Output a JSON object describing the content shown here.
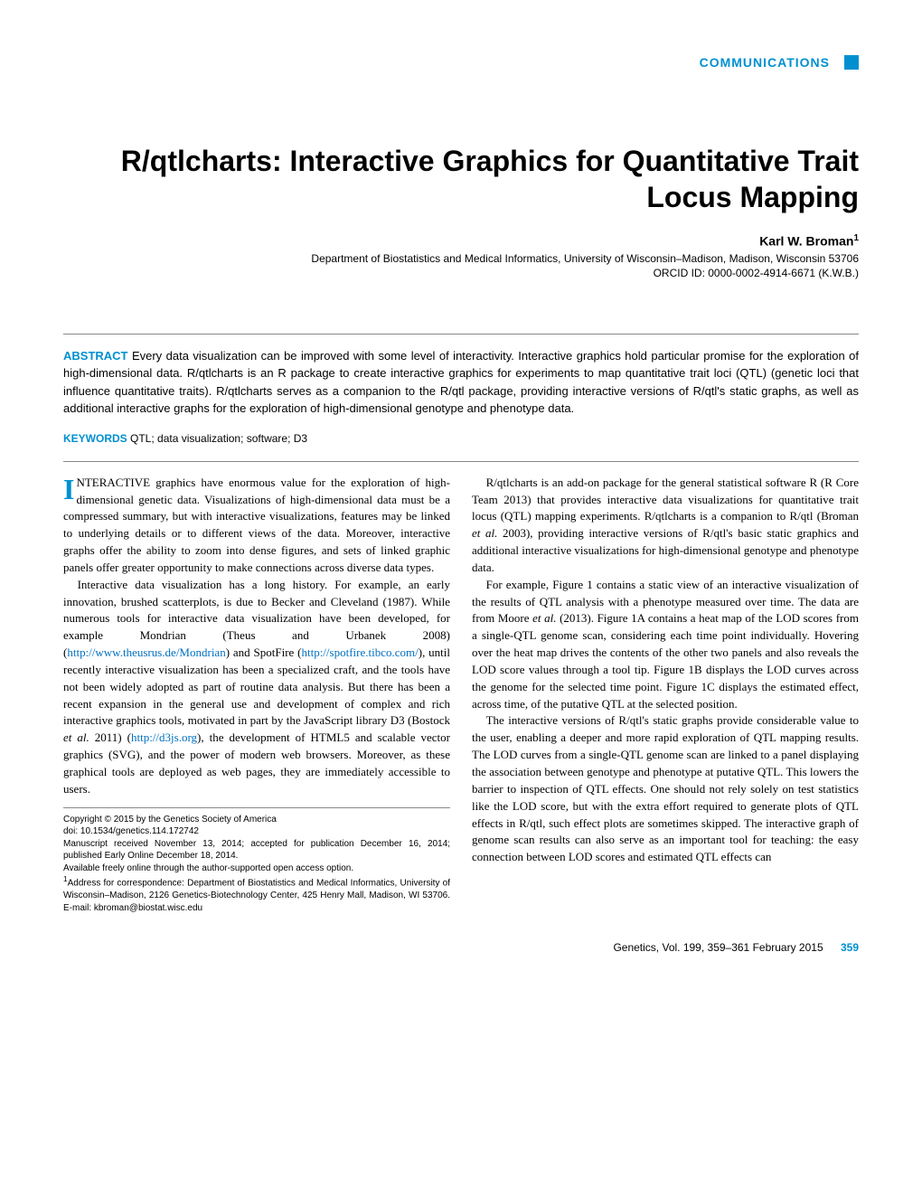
{
  "header": {
    "section_label": "COMMUNICATIONS"
  },
  "title": "R/qtlcharts: Interactive Graphics for Quantitative Trait Locus Mapping",
  "author": {
    "name": "Karl W. Broman",
    "sup": "1",
    "affiliation": "Department of Biostatistics and Medical Informatics, University of Wisconsin–Madison, Madison, Wisconsin 53706",
    "orcid": "ORCID ID: 0000-0002-4914-6671 (K.W.B.)"
  },
  "abstract": {
    "label": "ABSTRACT",
    "text": "Every data visualization can be improved with some level of interactivity. Interactive graphics hold particular promise for the exploration of high-dimensional data. R/qtlcharts is an R package to create interactive graphics for experiments to map quantitative trait loci (QTL) (genetic loci that influence quantitative traits). R/qtlcharts serves as a companion to the R/qtl package, providing interactive versions of R/qtl's static graphs, as well as additional interactive graphs for the exploration of high-dimensional genotype and phenotype data."
  },
  "keywords": {
    "label": "KEYWORDS",
    "text": "QTL; data visualization; software; D3"
  },
  "body": {
    "p1_dropcap": "I",
    "p1": "NTERACTIVE graphics have enormous value for the exploration of high-dimensional genetic data. Visualizations of high-dimensional data must be a compressed summary, but with interactive visualizations, features may be linked to underlying details or to different views of the data. Moreover, interactive graphs offer the ability to zoom into dense figures, and sets of linked graphic panels offer greater opportunity to make connections across diverse data types.",
    "p2a": "Interactive data visualization has a long history. For example, an early innovation, brushed scatterplots, is due to Becker and Cleveland (1987). While numerous tools for interactive data visualization have been developed, for example Mondrian (Theus and Urbanek 2008) (",
    "p2_link1": "http://www.theusrus.de/Mondrian",
    "p2b": ") and SpotFire (",
    "p2_link2": "http://spotfire.tibco.com/",
    "p2c": "), until recently interactive visualization has been a specialized craft, and the tools have not been widely adopted as part of routine data analysis. But there has been a recent expansion in the general use and development of complex and rich interactive graphics tools, motivated in part by the JavaScript library D3 (Bostock ",
    "p2d": " 2011) (",
    "p2_link3": "http://d3js.org",
    "p2e": "), the development of HTML5 and scalable vector graphics (SVG), and the power of modern web browsers. Moreover, as these graphical tools are deployed as web pages, they are immediately accessible to users.",
    "p3a": "R/qtlcharts is an add-on package for the general statistical software R (R Core Team 2013) that provides interactive data visualizations for quantitative trait locus (QTL) mapping experiments. R/qtlcharts is a companion to R/qtl (Broman ",
    "p3b": " 2003), providing interactive versions of R/qtl's basic static graphics and additional interactive visualizations for high-dimensional genotype and phenotype data.",
    "p4a": "For example, Figure 1 contains a static view of an interactive visualization of the results of QTL analysis with a phenotype measured over time. The data are from Moore ",
    "p4b": " (2013). Figure 1A contains a heat map of the LOD scores from a single-QTL genome scan, considering each time point individually. Hovering over the heat map drives the contents of the other two panels and also reveals the LOD score values through a tool tip. Figure 1B displays the LOD curves across the genome for the selected time point. Figure 1C displays the estimated effect, across time, of the putative QTL at the selected position.",
    "p5": "The interactive versions of R/qtl's static graphs provide considerable value to the user, enabling a deeper and more rapid exploration of QTL mapping results. The LOD curves from a single-QTL genome scan are linked to a panel displaying the association between genotype and phenotype at putative QTL. This lowers the barrier to inspection of QTL effects. One should not rely solely on test statistics like the LOD score, but with the extra effort required to generate plots of QTL effects in R/qtl, such effect plots are sometimes skipped. The interactive graph of genome scan results can also serve as an important tool for teaching: the easy connection between LOD scores and estimated QTL effects can",
    "etal": "et al."
  },
  "footnotes": {
    "copyright": "Copyright © 2015 by the Genetics Society of America",
    "doi": "doi: 10.1534/genetics.114.172742",
    "manuscript": "Manuscript received November 13, 2014; accepted for publication December 16, 2014; published Early Online December 18, 2014.",
    "openaccess": "Available freely online through the author-supported open access option.",
    "corr_sup": "1",
    "corr": "Address for correspondence: Department of Biostatistics and Medical Informatics, University of Wisconsin–Madison, 2126 Genetics-Biotechnology Center, 425 Henry Mall, Madison, WI 53706. E-mail: kbroman@biostat.wisc.edu"
  },
  "footer": {
    "citation": "Genetics, Vol. 199, 359–361   February 2015",
    "page": "359"
  },
  "colors": {
    "accent": "#0090d0",
    "link": "#0070c0",
    "text": "#000000",
    "rule": "#888888",
    "background": "#ffffff"
  },
  "typography": {
    "body_font": "Georgia/serif",
    "heading_font": "Arial/sans-serif",
    "title_size_pt": 24,
    "body_size_pt": 10,
    "abstract_size_pt": 10,
    "footnote_size_pt": 7.5
  }
}
